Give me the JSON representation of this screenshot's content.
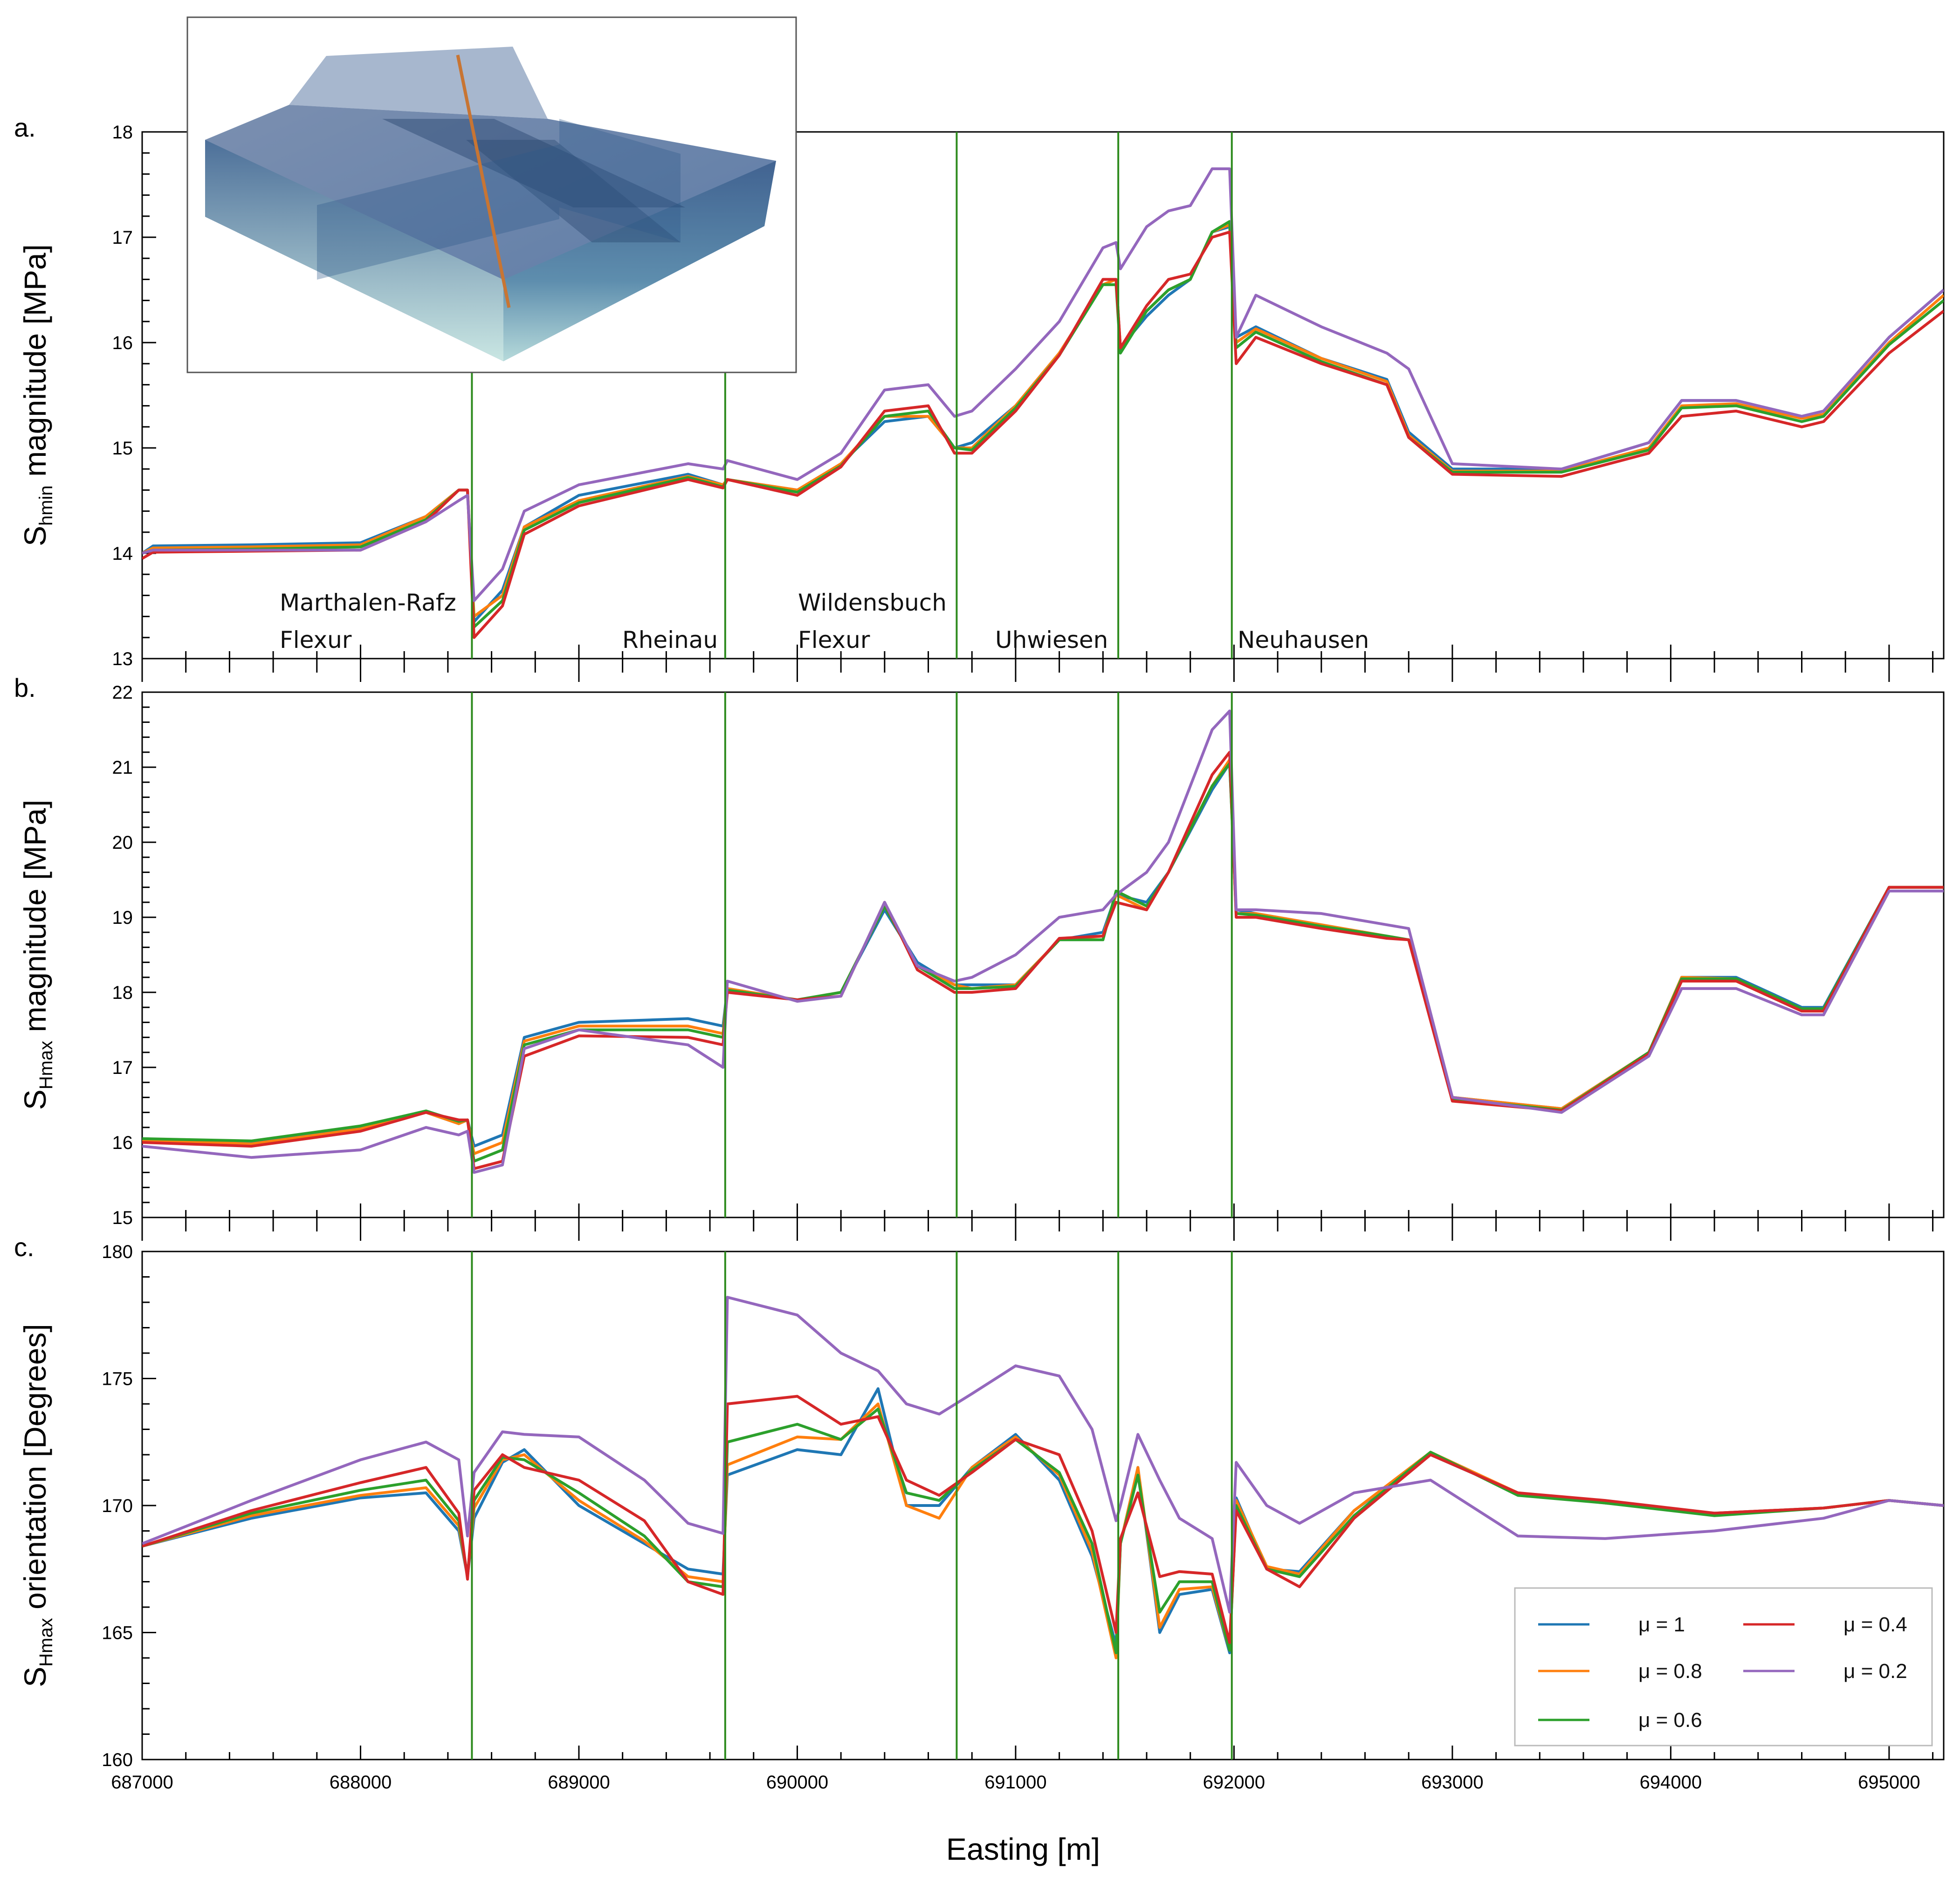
{
  "colors": {
    "mu_1": "#1f77b4",
    "mu_08": "#ff7f0e",
    "mu_06": "#2ca02c",
    "mu_04": "#d62728",
    "mu_02": "#9467bd",
    "fault_line": "#2e8b1e",
    "inset_block": "#6f97b5"
  },
  "xlabel": "Easting [m]",
  "legend": [
    {
      "key": "mu1",
      "label": "μ = 1",
      "color": "#1f77b4"
    },
    {
      "key": "mu08",
      "label": "μ = 0.8",
      "color": "#ff7f0e"
    },
    {
      "key": "mu06",
      "label": "μ = 0.6",
      "color": "#2ca02c"
    },
    {
      "key": "mu04",
      "label": "μ = 0.4",
      "color": "#d62728"
    },
    {
      "key": "mu02",
      "label": "μ = 0.2",
      "color": "#9467bd"
    }
  ],
  "faults": [
    {
      "x": 688510,
      "lines": [
        "Marthalen-Rafz",
        "Flexur"
      ]
    },
    {
      "x": 689670,
      "lines": [
        "Rheinau"
      ]
    },
    {
      "x": 690730,
      "lines": [
        "Wildensbuch",
        "Flexur"
      ]
    },
    {
      "x": 691470,
      "lines": [
        "Uhwiesen"
      ]
    },
    {
      "x": 691990,
      "lines": [
        "Neuhausen"
      ]
    }
  ],
  "chart_data": [
    {
      "panel": "a.",
      "type": "line",
      "ylabel_main": "S",
      "ylabel_sub": "hmin",
      "ylabel_rest": " magnitude [MPa]",
      "xlim": [
        687000,
        695250
      ],
      "ylim": [
        13,
        18
      ],
      "yticks": [
        13,
        14,
        15,
        16,
        17,
        18
      ],
      "x": [
        687000,
        687050,
        687500,
        688000,
        688300,
        688450,
        688490,
        688520,
        688650,
        688750,
        689000,
        689500,
        689660,
        689680,
        690000,
        690200,
        690400,
        690600,
        690720,
        690800,
        691000,
        691200,
        691400,
        691460,
        691480,
        691600,
        691700,
        691800,
        691900,
        691980,
        692010,
        692100,
        692400,
        692700,
        692800,
        693000,
        693500,
        693900,
        694050,
        694300,
        694600,
        694700,
        695000,
        695250
      ],
      "series": [
        {
          "name": "μ = 1",
          "key": "mu1",
          "values": [
            14.0,
            14.07,
            14.08,
            14.1,
            14.35,
            14.6,
            14.6,
            13.35,
            13.65,
            14.25,
            14.55,
            14.75,
            14.65,
            14.7,
            14.6,
            14.85,
            15.25,
            15.3,
            15.0,
            15.05,
            15.4,
            15.9,
            16.55,
            16.6,
            15.95,
            16.25,
            16.45,
            16.6,
            17.05,
            17.1,
            16.05,
            16.15,
            15.85,
            15.65,
            15.15,
            14.8,
            14.8,
            15.05,
            15.45,
            15.45,
            15.3,
            15.35,
            16.05,
            16.5
          ]
        },
        {
          "name": "μ = 0.8",
          "key": "mu08",
          "values": [
            14.0,
            14.05,
            14.06,
            14.08,
            14.35,
            14.6,
            14.6,
            13.4,
            13.6,
            14.25,
            14.5,
            14.73,
            14.65,
            14.7,
            14.6,
            14.85,
            15.3,
            15.3,
            15.0,
            15.0,
            15.4,
            15.9,
            16.55,
            16.6,
            15.95,
            16.3,
            16.5,
            16.6,
            17.05,
            17.12,
            16.0,
            16.13,
            15.85,
            15.63,
            15.12,
            14.78,
            14.78,
            15.0,
            15.4,
            15.42,
            15.28,
            15.32,
            16.0,
            16.45
          ]
        },
        {
          "name": "μ = 0.6",
          "key": "mu06",
          "values": [
            14.0,
            14.03,
            14.04,
            14.06,
            14.32,
            14.6,
            14.6,
            13.3,
            13.55,
            14.22,
            14.48,
            14.72,
            14.63,
            14.7,
            14.58,
            14.83,
            15.3,
            15.35,
            15.0,
            14.98,
            15.38,
            15.88,
            16.55,
            16.55,
            15.9,
            16.3,
            16.5,
            16.6,
            17.05,
            17.15,
            15.95,
            16.1,
            15.82,
            15.6,
            15.1,
            14.77,
            14.77,
            14.98,
            15.38,
            15.4,
            15.25,
            15.3,
            15.98,
            16.4
          ]
        },
        {
          "name": "μ = 0.4",
          "key": "mu04",
          "values": [
            13.95,
            14.01,
            14.02,
            14.03,
            14.3,
            14.6,
            14.6,
            13.2,
            13.5,
            14.18,
            14.45,
            14.7,
            14.62,
            14.7,
            14.55,
            14.82,
            15.35,
            15.4,
            14.95,
            14.95,
            15.35,
            15.88,
            16.6,
            16.6,
            15.95,
            16.35,
            16.6,
            16.65,
            17.0,
            17.05,
            15.8,
            16.05,
            15.8,
            15.6,
            15.1,
            14.75,
            14.73,
            14.95,
            15.3,
            15.35,
            15.2,
            15.25,
            15.9,
            16.3
          ]
        },
        {
          "name": "μ = 0.2",
          "key": "mu02",
          "values": [
            14.0,
            14.03,
            14.03,
            14.03,
            14.3,
            14.5,
            14.55,
            13.55,
            13.85,
            14.4,
            14.65,
            14.85,
            14.8,
            14.88,
            14.7,
            14.95,
            15.55,
            15.6,
            15.3,
            15.35,
            15.75,
            16.2,
            16.9,
            16.95,
            16.7,
            17.1,
            17.25,
            17.3,
            17.65,
            17.65,
            16.05,
            16.45,
            16.15,
            15.9,
            15.75,
            14.85,
            14.8,
            15.05,
            15.45,
            15.45,
            15.3,
            15.35,
            16.05,
            16.5
          ]
        }
      ]
    },
    {
      "panel": "b.",
      "type": "line",
      "ylabel_main": "S",
      "ylabel_sub": "Hmax",
      "ylabel_rest": " magnitude [MPa]",
      "xlim": [
        687000,
        695250
      ],
      "ylim": [
        15,
        22
      ],
      "yticks": [
        15,
        16,
        17,
        18,
        19,
        20,
        21,
        22
      ],
      "x": [
        687000,
        687500,
        688000,
        688300,
        688450,
        688490,
        688520,
        688650,
        688750,
        689000,
        689500,
        689660,
        689680,
        690000,
        690200,
        690400,
        690550,
        690720,
        690800,
        691000,
        691200,
        691400,
        691460,
        691600,
        691700,
        691900,
        691980,
        692010,
        692100,
        692400,
        692700,
        692800,
        693000,
        693500,
        693900,
        694050,
        694300,
        694600,
        694700,
        695000,
        695250
      ],
      "series": [
        {
          "name": "μ = 1",
          "key": "mu1",
          "values": [
            16.05,
            16.0,
            16.2,
            16.4,
            16.25,
            16.3,
            15.95,
            16.1,
            17.4,
            17.6,
            17.65,
            17.55,
            18.05,
            17.9,
            18.0,
            19.1,
            18.4,
            18.1,
            18.1,
            18.1,
            18.7,
            18.8,
            19.3,
            19.2,
            19.6,
            20.7,
            21.05,
            19.1,
            19.05,
            18.9,
            18.75,
            18.7,
            16.6,
            16.45,
            17.2,
            18.2,
            18.2,
            17.8,
            17.8,
            19.4,
            19.4
          ]
        },
        {
          "name": "μ = 0.8",
          "key": "mu08",
          "values": [
            16.03,
            15.98,
            16.18,
            16.4,
            16.25,
            16.3,
            15.85,
            16.0,
            17.35,
            17.55,
            17.55,
            17.45,
            18.05,
            17.9,
            18.0,
            19.15,
            18.35,
            18.1,
            18.05,
            18.1,
            18.7,
            18.75,
            19.3,
            19.1,
            19.6,
            20.75,
            21.1,
            19.05,
            19.05,
            18.9,
            18.75,
            18.7,
            16.6,
            16.45,
            17.2,
            18.2,
            18.18,
            17.78,
            17.78,
            19.4,
            19.4
          ]
        },
        {
          "name": "μ = 0.6",
          "key": "mu06",
          "values": [
            16.05,
            16.02,
            16.22,
            16.42,
            16.28,
            16.3,
            15.75,
            15.9,
            17.3,
            17.5,
            17.5,
            17.4,
            18.03,
            17.9,
            18.0,
            19.15,
            18.35,
            18.05,
            18.05,
            18.08,
            18.7,
            18.7,
            19.35,
            19.15,
            19.6,
            20.75,
            21.05,
            19.05,
            19.03,
            18.88,
            18.75,
            18.7,
            16.58,
            16.43,
            17.2,
            18.18,
            18.18,
            17.78,
            17.78,
            19.4,
            19.4
          ]
        },
        {
          "name": "μ = 0.4",
          "key": "mu04",
          "values": [
            16.0,
            15.95,
            16.15,
            16.4,
            16.3,
            16.3,
            15.65,
            15.75,
            17.15,
            17.42,
            17.4,
            17.3,
            18.0,
            17.9,
            17.95,
            19.2,
            18.3,
            18.0,
            18.0,
            18.05,
            18.72,
            18.75,
            19.2,
            19.1,
            19.6,
            20.9,
            21.2,
            19.0,
            19.0,
            18.85,
            18.72,
            18.7,
            16.55,
            16.42,
            17.18,
            18.15,
            18.15,
            17.75,
            17.75,
            19.4,
            19.4
          ]
        },
        {
          "name": "μ = 0.2",
          "key": "mu02",
          "values": [
            15.95,
            15.8,
            15.9,
            16.2,
            16.1,
            16.15,
            15.6,
            15.7,
            17.25,
            17.5,
            17.3,
            17.0,
            18.15,
            17.88,
            17.95,
            19.2,
            18.35,
            18.15,
            18.2,
            18.5,
            19.0,
            19.1,
            19.3,
            19.6,
            20.0,
            21.5,
            21.75,
            19.1,
            19.1,
            19.05,
            18.9,
            18.85,
            16.6,
            16.4,
            17.15,
            18.05,
            18.05,
            17.7,
            17.7,
            19.35,
            19.35
          ]
        }
      ]
    },
    {
      "panel": "c.",
      "type": "line",
      "ylabel_main": "S",
      "ylabel_sub": "Hmax",
      "ylabel_rest": " orientation [Degrees]",
      "xlim": [
        687000,
        695250
      ],
      "ylim": [
        160,
        180
      ],
      "yticks": [
        160,
        165,
        170,
        175,
        180
      ],
      "xticks": [
        687000,
        688000,
        689000,
        690000,
        691000,
        692000,
        693000,
        694000,
        695000
      ],
      "x": [
        687000,
        687500,
        688000,
        688300,
        688450,
        688490,
        688520,
        688650,
        688750,
        689000,
        689300,
        689500,
        689660,
        689680,
        690000,
        690200,
        690370,
        690500,
        690650,
        690800,
        691000,
        691200,
        691350,
        691460,
        691480,
        691560,
        691660,
        691750,
        691900,
        691980,
        692010,
        692150,
        692300,
        692550,
        692900,
        693300,
        693700,
        694200,
        694700,
        695000,
        695250
      ],
      "series": [
        {
          "name": "μ = 1",
          "key": "mu1",
          "values": [
            168.4,
            169.5,
            170.3,
            170.5,
            169.0,
            167.2,
            169.5,
            171.7,
            172.2,
            170.0,
            168.5,
            167.5,
            167.3,
            171.2,
            172.2,
            172.0,
            174.6,
            170.0,
            170.0,
            171.5,
            172.8,
            171.0,
            168.0,
            164.5,
            168.5,
            171.5,
            165.0,
            166.5,
            166.7,
            164.2,
            170.3,
            167.5,
            167.4,
            169.8,
            172.0,
            170.5,
            170.1,
            169.7,
            169.9,
            170.2,
            170.0
          ]
        },
        {
          "name": "μ = 0.8",
          "key": "mu08",
          "values": [
            168.4,
            169.6,
            170.4,
            170.7,
            169.2,
            167.2,
            169.9,
            171.8,
            172.0,
            170.2,
            168.6,
            167.2,
            167.0,
            171.6,
            172.7,
            172.6,
            174.0,
            170.0,
            169.5,
            171.5,
            172.7,
            171.2,
            168.2,
            164.0,
            168.5,
            171.5,
            165.2,
            166.7,
            166.8,
            164.3,
            170.2,
            167.6,
            167.3,
            169.8,
            172.1,
            170.5,
            170.1,
            169.7,
            169.9,
            170.2,
            170.0
          ]
        },
        {
          "name": "μ = 0.6",
          "key": "mu06",
          "values": [
            168.4,
            169.7,
            170.6,
            171.0,
            169.4,
            167.2,
            170.2,
            171.9,
            171.8,
            170.5,
            168.8,
            167.0,
            166.8,
            172.5,
            173.2,
            172.6,
            173.8,
            170.5,
            170.2,
            171.4,
            172.6,
            171.3,
            168.5,
            164.2,
            168.5,
            171.2,
            165.8,
            167.0,
            167.0,
            164.3,
            170.0,
            167.5,
            167.2,
            169.6,
            172.1,
            170.4,
            170.1,
            169.6,
            169.9,
            170.2,
            170.0
          ]
        },
        {
          "name": "μ = 0.4",
          "key": "mu04",
          "values": [
            168.4,
            169.8,
            170.9,
            171.5,
            169.7,
            167.1,
            170.6,
            172.0,
            171.5,
            171.0,
            169.4,
            167.0,
            166.5,
            174.0,
            174.3,
            173.2,
            173.5,
            171.0,
            170.4,
            171.3,
            172.6,
            172.0,
            169.0,
            165.0,
            168.7,
            170.5,
            167.2,
            167.4,
            167.3,
            164.6,
            169.8,
            167.5,
            166.8,
            169.5,
            172.0,
            170.5,
            170.2,
            169.7,
            169.9,
            170.2,
            170.0
          ]
        },
        {
          "name": "μ = 0.2",
          "key": "mu02",
          "values": [
            168.5,
            170.2,
            171.8,
            172.5,
            171.8,
            168.8,
            171.3,
            172.9,
            172.8,
            172.7,
            171.0,
            169.3,
            168.9,
            178.2,
            177.5,
            176.0,
            175.3,
            174.0,
            173.6,
            174.4,
            175.5,
            175.1,
            173.0,
            169.4,
            170.0,
            172.8,
            171.0,
            169.5,
            168.7,
            165.8,
            171.7,
            170.0,
            169.3,
            170.5,
            171.0,
            168.8,
            168.7,
            169.0,
            169.5,
            170.2,
            170.0
          ]
        }
      ]
    }
  ]
}
